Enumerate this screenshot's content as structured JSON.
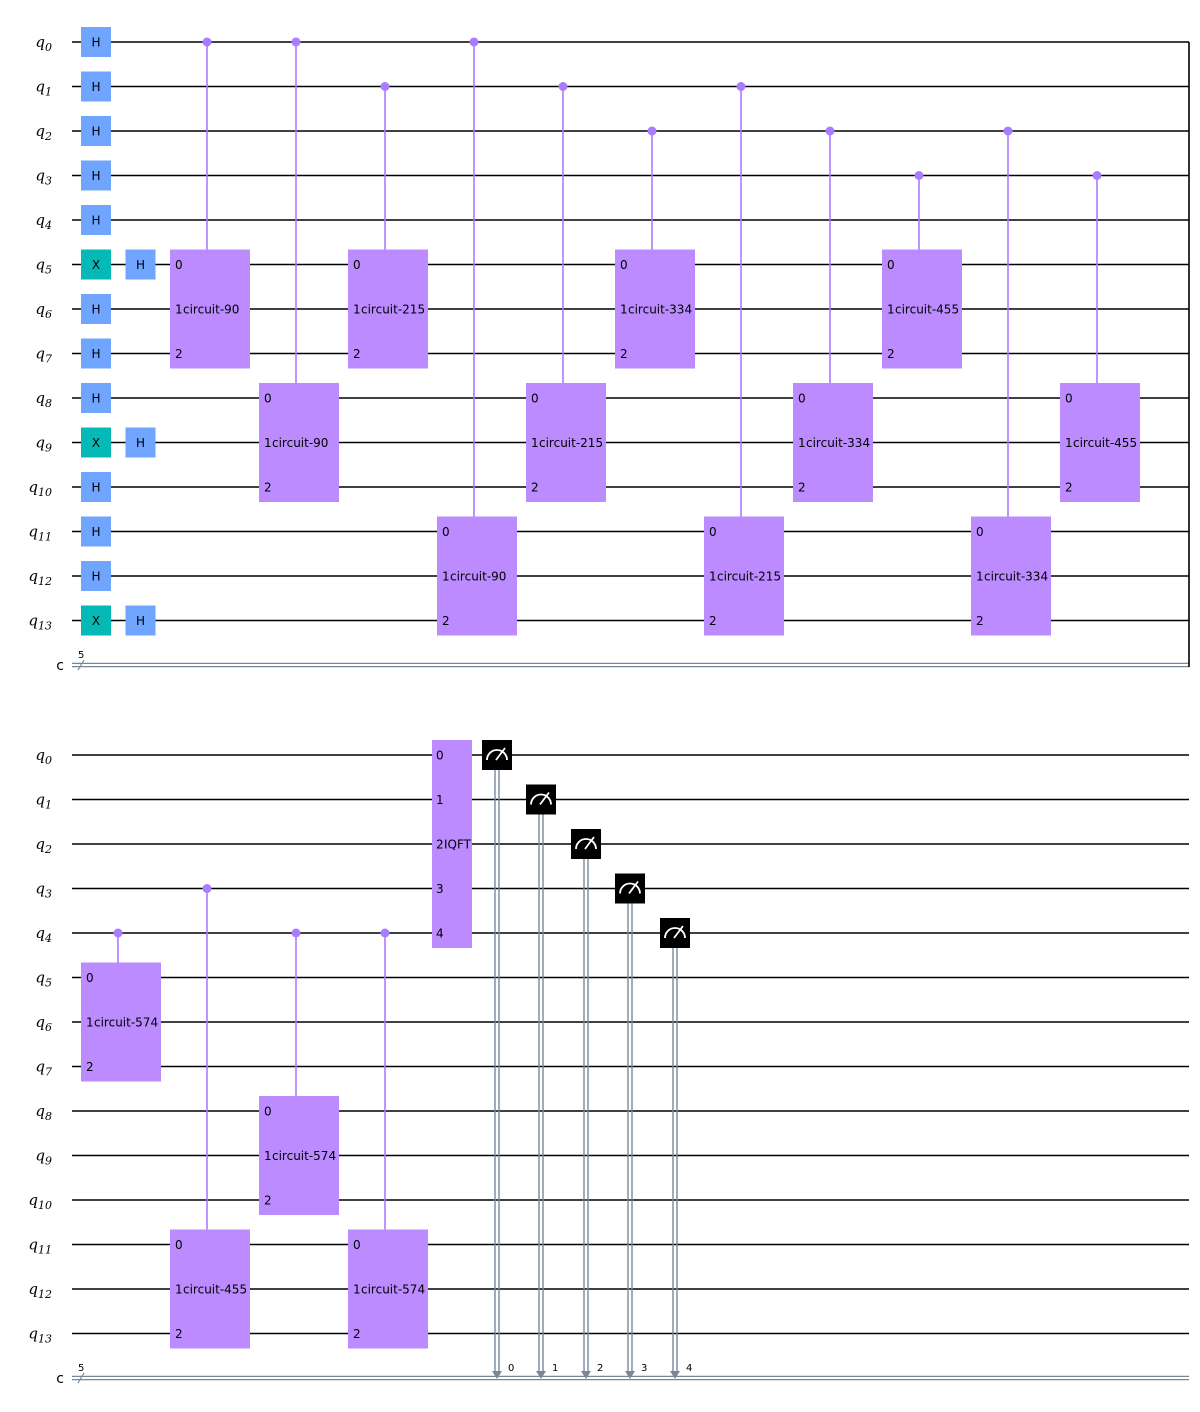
{
  "colors": {
    "h_gate": "#6fa4ff",
    "x_gate": "#05bab6",
    "custom_gate": "#bb8bff",
    "control": "#a87dff",
    "measure_bg": "#000000",
    "measure_icon": "#ffffff",
    "classical_wire": "#778899",
    "wire": "#000000"
  },
  "registers": {
    "qubit_prefix": "q",
    "qubit_indices": [
      "0",
      "1",
      "2",
      "3",
      "4",
      "5",
      "6",
      "7",
      "8",
      "9",
      "10",
      "11",
      "12",
      "13"
    ],
    "classical_label": "c",
    "classical_width": "5"
  },
  "panels": [
    {
      "name": "top-panel",
      "single_gates": [
        {
          "label": "H",
          "qubit": 0,
          "col": 0,
          "kind": "h"
        },
        {
          "label": "H",
          "qubit": 1,
          "col": 0,
          "kind": "h"
        },
        {
          "label": "H",
          "qubit": 2,
          "col": 0,
          "kind": "h"
        },
        {
          "label": "H",
          "qubit": 3,
          "col": 0,
          "kind": "h"
        },
        {
          "label": "H",
          "qubit": 4,
          "col": 0,
          "kind": "h"
        },
        {
          "label": "X",
          "qubit": 5,
          "col": 0,
          "kind": "x"
        },
        {
          "label": "H",
          "qubit": 5,
          "col": 1,
          "kind": "h"
        },
        {
          "label": "H",
          "qubit": 6,
          "col": 0,
          "kind": "h"
        },
        {
          "label": "H",
          "qubit": 7,
          "col": 0,
          "kind": "h"
        },
        {
          "label": "H",
          "qubit": 8,
          "col": 0,
          "kind": "h"
        },
        {
          "label": "X",
          "qubit": 9,
          "col": 0,
          "kind": "x"
        },
        {
          "label": "H",
          "qubit": 9,
          "col": 1,
          "kind": "h"
        },
        {
          "label": "H",
          "qubit": 10,
          "col": 0,
          "kind": "h"
        },
        {
          "label": "H",
          "qubit": 11,
          "col": 0,
          "kind": "h"
        },
        {
          "label": "H",
          "qubit": 12,
          "col": 0,
          "kind": "h"
        },
        {
          "label": "X",
          "qubit": 13,
          "col": 0,
          "kind": "x"
        },
        {
          "label": "H",
          "qubit": 13,
          "col": 1,
          "kind": "h"
        }
      ],
      "controlled_gates": [
        {
          "name": "circuit-90",
          "label": "circuit-90",
          "control": 0,
          "top": 5,
          "col": 2
        },
        {
          "name": "circuit-90",
          "label": "circuit-90",
          "control": 0,
          "top": 8,
          "col": 4
        },
        {
          "name": "circuit-215",
          "label": "circuit-215",
          "control": 1,
          "top": 5,
          "col": 6
        },
        {
          "name": "circuit-90",
          "label": "circuit-90",
          "control": 0,
          "top": 11,
          "col": 8
        },
        {
          "name": "circuit-215",
          "label": "circuit-215",
          "control": 1,
          "top": 8,
          "col": 10
        },
        {
          "name": "circuit-334",
          "label": "circuit-334",
          "control": 2,
          "top": 5,
          "col": 12
        },
        {
          "name": "circuit-215",
          "label": "circuit-215",
          "control": 1,
          "top": 11,
          "col": 14
        },
        {
          "name": "circuit-334",
          "label": "circuit-334",
          "control": 2,
          "top": 8,
          "col": 16
        },
        {
          "name": "circuit-455",
          "label": "circuit-455",
          "control": 3,
          "top": 5,
          "col": 18
        },
        {
          "name": "circuit-334",
          "label": "circuit-334",
          "control": 2,
          "top": 11,
          "col": 20
        },
        {
          "name": "circuit-455",
          "label": "circuit-455",
          "control": 3,
          "top": 8,
          "col": 22
        }
      ],
      "barrier_end": true
    },
    {
      "name": "bottom-panel",
      "controlled_gates": [
        {
          "name": "circuit-574",
          "label": "circuit-574",
          "control": 4,
          "top": 5,
          "col": 0
        },
        {
          "name": "circuit-455",
          "label": "circuit-455",
          "control": 3,
          "top": 11,
          "col": 2
        },
        {
          "name": "circuit-574",
          "label": "circuit-574",
          "control": 4,
          "top": 8,
          "col": 4
        },
        {
          "name": "circuit-574",
          "label": "circuit-574",
          "control": 4,
          "top": 11,
          "col": 6
        }
      ],
      "iqft": {
        "label": "IQFT",
        "pins": [
          "0",
          "1",
          "2",
          "3",
          "4"
        ]
      },
      "measures": [
        {
          "qubit": 0,
          "bit": "0"
        },
        {
          "qubit": 1,
          "bit": "1"
        },
        {
          "qubit": 2,
          "bit": "2"
        },
        {
          "qubit": 3,
          "bit": "3"
        },
        {
          "qubit": 4,
          "bit": "4"
        }
      ]
    }
  ],
  "gate_pins": [
    "0",
    "1",
    "2"
  ],
  "gate_pin_mid_prefix": "1"
}
